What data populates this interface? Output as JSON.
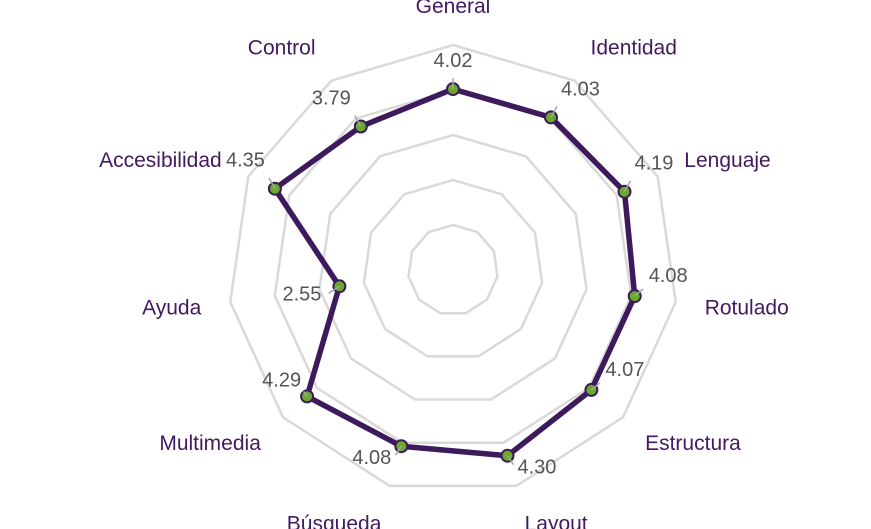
{
  "chart_data": {
    "type": "radar",
    "categories": [
      "General",
      "Identidad",
      "Lenguaje",
      "Rotulado",
      "Estructura",
      "Layout",
      "Búsqueda",
      "Multimedia",
      "Ayuda",
      "Accesibilidad",
      "Control"
    ],
    "series": [
      {
        "values": [
          4.02,
          4.03,
          4.19,
          4.08,
          4.07,
          4.3,
          4.08,
          4.29,
          2.55,
          4.35,
          3.79
        ]
      }
    ],
    "value_labels": [
      "4.02",
      "4.03",
      "4.19",
      "4.08",
      "4.07",
      "4.30",
      "4.08",
      "4.29",
      "2.55",
      "4.35",
      "3.79"
    ],
    "rmin": 0,
    "rmax": 5,
    "grid_rings": 5,
    "grid": true,
    "colors": {
      "line": "#3d1a5c",
      "marker": "#6aaa2a",
      "grid": "#d9d9d9",
      "category_text": "#43195f",
      "value_text": "#555555"
    }
  }
}
